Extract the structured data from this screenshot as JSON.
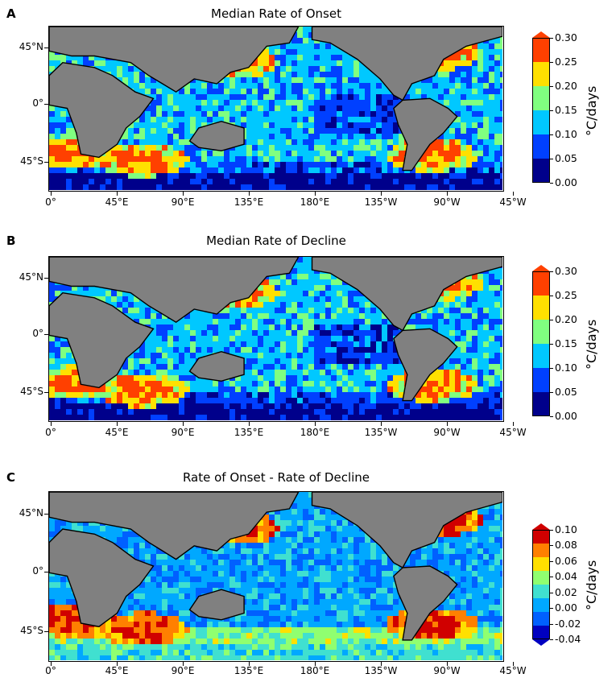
{
  "chart_data": [
    {
      "type": "heatmap",
      "panel_label": "A",
      "title": "Median Rate of Onset",
      "xticks": [
        "0°",
        "45°E",
        "90°E",
        "135°E",
        "180°E",
        "135°W",
        "90°W",
        "45°W"
      ],
      "yticks": [
        "45°N",
        "0°",
        "45°S"
      ],
      "colorbar": {
        "label": "°C/days",
        "ticks": [
          "0.00",
          "0.05",
          "0.10",
          "0.15",
          "0.20",
          "0.25",
          "0.30"
        ],
        "range": [
          0.0,
          0.3
        ],
        "extend": "max",
        "colors": [
          "#00008b",
          "#0040ff",
          "#00c8ff",
          "#80ff80",
          "#ffe000",
          "#ff4000"
        ]
      },
      "features": "High onset rates (0.25–0.30) in western boundary currents (Kuroshio, Gulf Stream, Agulhas, Brazil–Malvinas); low rates (0.05–0.10) in eastern tropical Pacific; very low (<0.05) near Antarctica"
    },
    {
      "type": "heatmap",
      "panel_label": "B",
      "title": "Median Rate of Decline",
      "xticks": [
        "0°",
        "45°E",
        "90°E",
        "135°E",
        "180°E",
        "135°W",
        "90°W",
        "45°W"
      ],
      "yticks": [
        "45°N",
        "0°",
        "45°S"
      ],
      "colorbar": {
        "label": "°C/days",
        "ticks": [
          "0.00",
          "0.05",
          "0.10",
          "0.15",
          "0.20",
          "0.25",
          "0.30"
        ],
        "range": [
          0.0,
          0.3
        ],
        "extend": "max",
        "colors": [
          "#00008b",
          "#0040ff",
          "#00c8ff",
          "#80ff80",
          "#ffe000",
          "#ff4000"
        ]
      },
      "features": "Similar pattern but generally lower; decline rates 0.10–0.15 across most oceans; highest in Kuroshio and Gulf Stream"
    },
    {
      "type": "heatmap",
      "panel_label": "C",
      "title": "Rate of Onset - Rate of Decline",
      "xticks": [
        "0°",
        "45°E",
        "90°E",
        "135°E",
        "180°E",
        "135°W",
        "90°W",
        "45°W"
      ],
      "yticks": [
        "45°N",
        "0°",
        "45°S"
      ],
      "colorbar": {
        "label": "°C/days",
        "ticks": [
          "-0.04",
          "-0.02",
          "0.00",
          "0.02",
          "0.04",
          "0.06",
          "0.08",
          "0.10"
        ],
        "range": [
          -0.04,
          0.1
        ],
        "extend": "both",
        "colors": [
          "#0000c0",
          "#0060ff",
          "#00a8ff",
          "#40e0d0",
          "#90ff70",
          "#ffe000",
          "#ff8000",
          "#d00000"
        ]
      },
      "features": "Mostly positive differences (0.00–0.04); positive maxima in Agulhas retroflection and Southern Ocean bands; negative values in North Atlantic and coastal regions"
    }
  ]
}
